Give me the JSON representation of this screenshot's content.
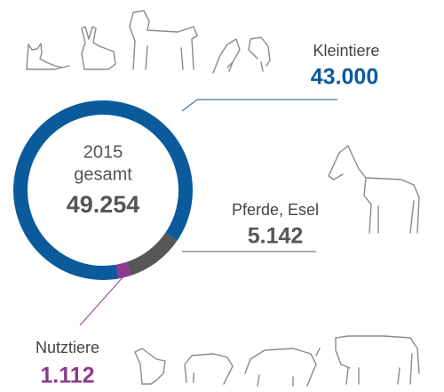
{
  "chart_data": {
    "type": "donut",
    "center_label": [
      "2015",
      "gesamt"
    ],
    "total_label": "49.254",
    "categories": [
      "Kleintiere",
      "Pferde, Esel",
      "Nutztiere"
    ],
    "values": [
      43000,
      5142,
      1112
    ],
    "value_labels": [
      "43.000",
      "5.142",
      "1.112"
    ],
    "colors": [
      "#0b5a9c",
      "#575757",
      "#8b3a8f"
    ]
  }
}
